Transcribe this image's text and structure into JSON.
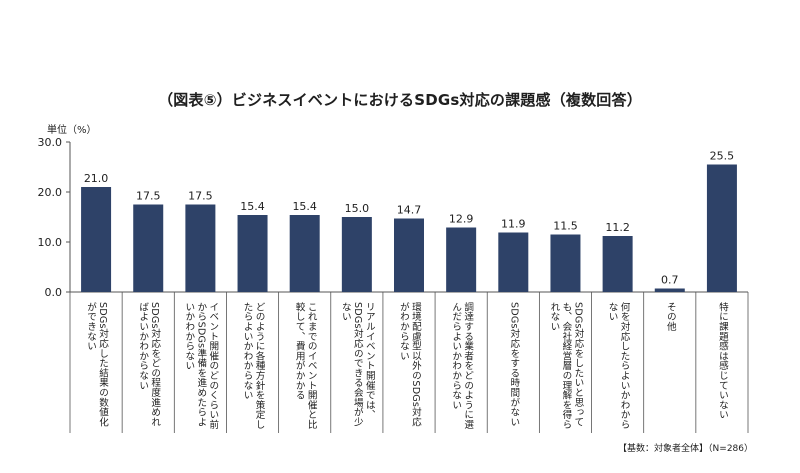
{
  "title": "（図表⑤）ビジネスイベントにおけるSDGs対応の課題感（複数回答）",
  "unit_label": "単位（%）",
  "footnote": "【基数：対象者全体】（N=286）",
  "colors": {
    "bar": "#2e4268",
    "axis": "#555555",
    "grid": "#cfcfcf"
  },
  "chart_data": {
    "type": "bar",
    "title": "（図表⑤）ビジネスイベントにおけるSDGs対応の課題感（複数回答）",
    "xlabel": "",
    "ylabel": "単位（%）",
    "ylim": [
      0,
      30
    ],
    "yticks": [
      "0.0",
      "10.0",
      "20.0",
      "30.0"
    ],
    "grid": false,
    "legend": "none",
    "categories": [
      "SDGs対応した結果の数値化ができない",
      "SDGs対応をどの程度進めればよいかわからない",
      "イベント開催のどのくらい前からSDGs準備を進めたらよいかわからない",
      "どのように各種方針を策定したらよいかわからない",
      "これまでのイベント開催と比較して、費用がかかる",
      "リアルイベント開催では、SDGs対応のできる会場が少ない",
      "環境配慮型以外のSDGs対応がわからない",
      "調達する業者をどのように選んだらよいかわからない",
      "SDGs対応をする時間がない",
      "SDGs対応をしたいと思っても、会社経営層の理解を得られない",
      "何を対応したらよいかわからない",
      "その他",
      "特に課題感は感じていない"
    ],
    "values": [
      21.0,
      17.5,
      17.5,
      15.4,
      15.4,
      15.0,
      14.7,
      12.9,
      11.9,
      11.5,
      11.2,
      0.7,
      25.5
    ],
    "value_labels": [
      "21.0",
      "17.5",
      "17.5",
      "15.4",
      "15.4",
      "15.0",
      "14.7",
      "12.9",
      "11.9",
      "11.5",
      "11.2",
      "0.7",
      "25.5"
    ]
  }
}
